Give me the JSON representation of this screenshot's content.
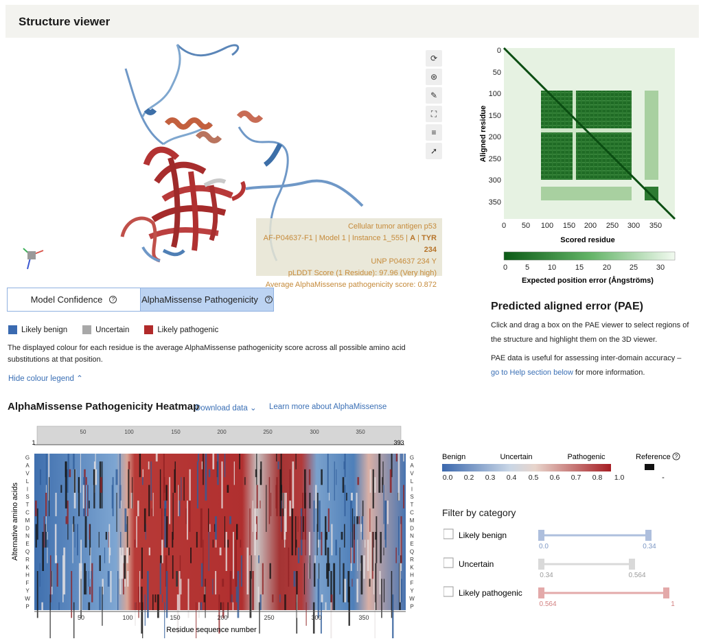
{
  "header": {
    "title": "Structure viewer"
  },
  "viewer": {
    "tools": [
      "refresh-icon",
      "target-icon",
      "wrench-icon",
      "expand-icon",
      "sliders-icon",
      "cursor-icon"
    ],
    "info": {
      "line1": "Cellular tumor antigen p53",
      "line2_pre": "AF-P04637-F1 | Model 1 | Instance 1_555 | ",
      "line2_chain": "A",
      "line2_sep": " | ",
      "line2_res": "TYR 234",
      "line3": "UNP P04637 234 Y",
      "line4": "pLDDT Score (1 Residue): 97.96 (Very high)",
      "line5": "Average AlphaMissense pathogenicity score: 0.872"
    }
  },
  "tabs": [
    {
      "label": "Model Confidence",
      "selected": false
    },
    {
      "label": "AlphaMissense Pathogenicity",
      "selected": true
    }
  ],
  "legend": [
    {
      "label": "Likely benign",
      "color": "#3a6ab0"
    },
    {
      "label": "Uncertain",
      "color": "#a8a8a8"
    },
    {
      "label": "Likely pathogenic",
      "color": "#b12a2a"
    }
  ],
  "description": "The displayed colour for each residue is the average AlphaMissense pathogenicity score across all possible amino acid substitutions at that position.",
  "hide_legend": "Hide colour legend",
  "pae": {
    "y_ticks": [
      "0",
      "50",
      "100",
      "150",
      "200",
      "250",
      "300",
      "350"
    ],
    "x_ticks": [
      "0",
      "50",
      "100",
      "150",
      "200",
      "250",
      "300",
      "350"
    ],
    "ylabel": "Aligned residue",
    "xlabel": "Scored residue",
    "scale_ticks": [
      "0",
      "5",
      "10",
      "15",
      "20",
      "25",
      "30"
    ],
    "scale_label": "Expected position error (Ångströms)",
    "title": "Predicted aligned error (PAE)",
    "p1": "Click and drag a box on the PAE viewer to select regions of the structure and highlight them on the 3D viewer.",
    "p2_pre": "PAE data is useful for assessing inter-domain accuracy – ",
    "p2_link": "go to Help section below",
    "p2_post": " for more information."
  },
  "heatmap": {
    "title": "AlphaMissense Pathogenicity Heatmap",
    "download": "Download data",
    "learn": "Learn more about AlphaMissense",
    "range_start": "1",
    "range_end": "393",
    "top_ticks": [
      "50",
      "100",
      "150",
      "200",
      "250",
      "300",
      "350"
    ],
    "bottom_ticks": [
      "50",
      "100",
      "150",
      "200",
      "250",
      "300",
      "350"
    ],
    "amino_acids": [
      "G",
      "A",
      "V",
      "L",
      "I",
      "S",
      "T",
      "C",
      "M",
      "D",
      "N",
      "E",
      "Q",
      "R",
      "K",
      "H",
      "F",
      "Y",
      "W",
      "P"
    ],
    "ylabel": "Alternative amino acids",
    "xlabel": "Residue sequence number"
  },
  "hm_legend": {
    "benign": "Benign",
    "uncertain": "Uncertain",
    "pathogenic": "Pathogenic",
    "reference": "Reference",
    "ticks": [
      "0.0",
      "0.2",
      "0.3",
      "0.4",
      "0.5",
      "0.6",
      "0.7",
      "0.8",
      "1.0"
    ],
    "ref_dash": "-"
  },
  "filter": {
    "title": "Filter by category",
    "items": [
      {
        "label": "Likely benign",
        "min": "0.0",
        "max": "0.34",
        "color": "#aebfdd"
      },
      {
        "label": "Uncertain",
        "min": "0.34",
        "max": "0.564",
        "color": "#d9d9d9"
      },
      {
        "label": "Likely pathogenic",
        "min": "0.564",
        "max": "1",
        "color": "#e3a9a9"
      }
    ]
  }
}
